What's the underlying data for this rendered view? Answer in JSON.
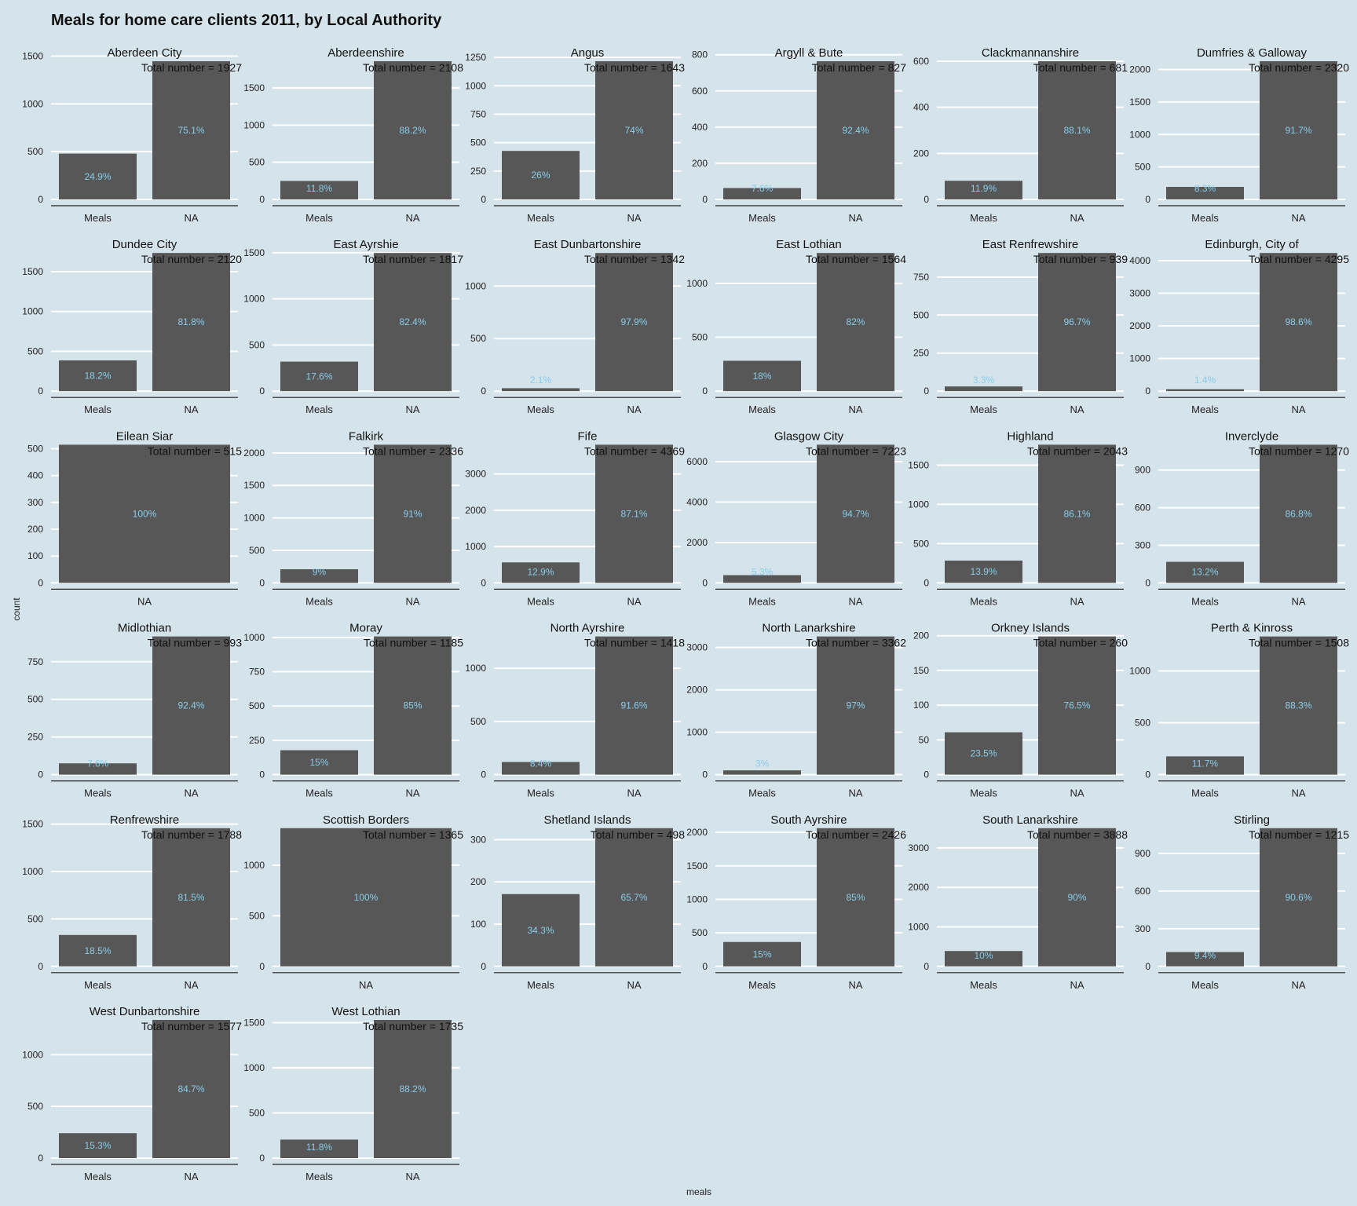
{
  "colors": {
    "background": "#d5e3ea",
    "bar": "#575757",
    "percent_label": "#87cdea",
    "gridline": "#ffffff",
    "axis_line": "#222222"
  },
  "chart_data": {
    "type": "bar",
    "title": "Meals for home care clients 2011, by Local Authority",
    "xlabel": "meals",
    "ylabel": "count",
    "total_prefix": "Total number = ",
    "grid": true,
    "panels": [
      {
        "name": "Aberdeen City",
        "total": 1927,
        "ticks": [
          0,
          500,
          1000,
          1500
        ],
        "bars": [
          {
            "category": "Meals",
            "value": 480,
            "pct": "24.9%"
          },
          {
            "category": "NA",
            "value": 1447,
            "pct": "75.1%"
          }
        ]
      },
      {
        "name": "Aberdeenshire",
        "total": 2108,
        "ticks": [
          0,
          500,
          1000,
          1500
        ],
        "bars": [
          {
            "category": "Meals",
            "value": 249,
            "pct": "11.8%"
          },
          {
            "category": "NA",
            "value": 1859,
            "pct": "88.2%"
          }
        ]
      },
      {
        "name": "Angus",
        "total": 1643,
        "ticks": [
          0,
          250,
          500,
          750,
          1000,
          1250
        ],
        "bars": [
          {
            "category": "Meals",
            "value": 427,
            "pct": "26%"
          },
          {
            "category": "NA",
            "value": 1216,
            "pct": "74%"
          }
        ]
      },
      {
        "name": "Argyll & Bute",
        "total": 827,
        "ticks": [
          0,
          200,
          400,
          600,
          800
        ],
        "bars": [
          {
            "category": "Meals",
            "value": 63,
            "pct": "7.6%"
          },
          {
            "category": "NA",
            "value": 764,
            "pct": "92.4%"
          }
        ]
      },
      {
        "name": "Clackmannanshire",
        "total": 681,
        "ticks": [
          0,
          200,
          400,
          600
        ],
        "bars": [
          {
            "category": "Meals",
            "value": 81,
            "pct": "11.9%"
          },
          {
            "category": "NA",
            "value": 600,
            "pct": "88.1%"
          }
        ]
      },
      {
        "name": "Dumfries & Galloway",
        "total": 2320,
        "ticks": [
          0,
          500,
          1000,
          1500,
          2000
        ],
        "bars": [
          {
            "category": "Meals",
            "value": 193,
            "pct": "8.3%"
          },
          {
            "category": "NA",
            "value": 2127,
            "pct": "91.7%"
          }
        ]
      },
      {
        "name": "Dundee City",
        "total": 2120,
        "ticks": [
          0,
          500,
          1000,
          1500
        ],
        "bars": [
          {
            "category": "Meals",
            "value": 386,
            "pct": "18.2%"
          },
          {
            "category": "NA",
            "value": 1734,
            "pct": "81.8%"
          }
        ]
      },
      {
        "name": "East Ayrshie",
        "total": 1817,
        "ticks": [
          0,
          500,
          1000,
          1500
        ],
        "bars": [
          {
            "category": "Meals",
            "value": 320,
            "pct": "17.6%"
          },
          {
            "category": "NA",
            "value": 1497,
            "pct": "82.4%"
          }
        ]
      },
      {
        "name": "East Dunbartonshire",
        "total": 1342,
        "ticks": [
          0,
          500,
          1000
        ],
        "bars": [
          {
            "category": "Meals",
            "value": 28,
            "pct": "2.1%"
          },
          {
            "category": "NA",
            "value": 1314,
            "pct": "97.9%"
          }
        ]
      },
      {
        "name": "East Lothian",
        "total": 1564,
        "ticks": [
          0,
          500,
          1000
        ],
        "bars": [
          {
            "category": "Meals",
            "value": 282,
            "pct": "18%"
          },
          {
            "category": "NA",
            "value": 1282,
            "pct": "82%"
          }
        ]
      },
      {
        "name": "East Renfrewshire",
        "total": 939,
        "ticks": [
          0,
          250,
          500,
          750
        ],
        "bars": [
          {
            "category": "Meals",
            "value": 31,
            "pct": "3.3%"
          },
          {
            "category": "NA",
            "value": 908,
            "pct": "96.7%"
          }
        ]
      },
      {
        "name": "Edinburgh, City of",
        "total": 4295,
        "ticks": [
          0,
          1000,
          2000,
          3000,
          4000
        ],
        "bars": [
          {
            "category": "Meals",
            "value": 60,
            "pct": "1.4%"
          },
          {
            "category": "NA",
            "value": 4235,
            "pct": "98.6%"
          }
        ]
      },
      {
        "name": "Eilean Siar",
        "total": 515,
        "ticks": [
          0,
          100,
          200,
          300,
          400,
          500
        ],
        "bars": [
          {
            "category": "NA",
            "value": 515,
            "pct": "100%"
          }
        ]
      },
      {
        "name": "Falkirk",
        "total": 2336,
        "ticks": [
          0,
          500,
          1000,
          1500,
          2000
        ],
        "bars": [
          {
            "category": "Meals",
            "value": 210,
            "pct": "9%"
          },
          {
            "category": "NA",
            "value": 2126,
            "pct": "91%"
          }
        ]
      },
      {
        "name": "Fife",
        "total": 4369,
        "ticks": [
          0,
          1000,
          2000,
          3000
        ],
        "bars": [
          {
            "category": "Meals",
            "value": 564,
            "pct": "12.9%"
          },
          {
            "category": "NA",
            "value": 3805,
            "pct": "87.1%"
          }
        ]
      },
      {
        "name": "Glasgow City",
        "total": 7223,
        "ticks": [
          0,
          2000,
          4000,
          6000
        ],
        "bars": [
          {
            "category": "Meals",
            "value": 383,
            "pct": "5.3%"
          },
          {
            "category": "NA",
            "value": 6840,
            "pct": "94.7%"
          }
        ]
      },
      {
        "name": "Highland",
        "total": 2043,
        "ticks": [
          0,
          500,
          1000,
          1500
        ],
        "bars": [
          {
            "category": "Meals",
            "value": 284,
            "pct": "13.9%"
          },
          {
            "category": "NA",
            "value": 1759,
            "pct": "86.1%"
          }
        ]
      },
      {
        "name": "Inverclyde",
        "total": 1270,
        "ticks": [
          0,
          300,
          600,
          900
        ],
        "bars": [
          {
            "category": "Meals",
            "value": 168,
            "pct": "13.2%"
          },
          {
            "category": "NA",
            "value": 1102,
            "pct": "86.8%"
          }
        ]
      },
      {
        "name": "Midlothian",
        "total": 993,
        "ticks": [
          0,
          250,
          500,
          750
        ],
        "bars": [
          {
            "category": "Meals",
            "value": 75,
            "pct": "7.6%"
          },
          {
            "category": "NA",
            "value": 918,
            "pct": "92.4%"
          }
        ]
      },
      {
        "name": "Moray",
        "total": 1185,
        "ticks": [
          0,
          250,
          500,
          750,
          1000
        ],
        "bars": [
          {
            "category": "Meals",
            "value": 178,
            "pct": "15%"
          },
          {
            "category": "NA",
            "value": 1007,
            "pct": "85%"
          }
        ]
      },
      {
        "name": "North Ayrshire",
        "total": 1418,
        "ticks": [
          0,
          500,
          1000
        ],
        "bars": [
          {
            "category": "Meals",
            "value": 119,
            "pct": "8.4%"
          },
          {
            "category": "NA",
            "value": 1299,
            "pct": "91.6%"
          }
        ]
      },
      {
        "name": "North Lanarkshire",
        "total": 3362,
        "ticks": [
          0,
          1000,
          2000,
          3000
        ],
        "bars": [
          {
            "category": "Meals",
            "value": 101,
            "pct": "3%"
          },
          {
            "category": "NA",
            "value": 3261,
            "pct": "97%"
          }
        ]
      },
      {
        "name": "Orkney Islands",
        "total": 260,
        "ticks": [
          0,
          50,
          100,
          150,
          200
        ],
        "bars": [
          {
            "category": "Meals",
            "value": 61,
            "pct": "23.5%"
          },
          {
            "category": "NA",
            "value": 199,
            "pct": "76.5%"
          }
        ]
      },
      {
        "name": "Perth & Kinross",
        "total": 1508,
        "ticks": [
          0,
          500,
          1000
        ],
        "bars": [
          {
            "category": "Meals",
            "value": 176,
            "pct": "11.7%"
          },
          {
            "category": "NA",
            "value": 1332,
            "pct": "88.3%"
          }
        ]
      },
      {
        "name": "Renfrewshire",
        "total": 1788,
        "ticks": [
          0,
          500,
          1000,
          1500
        ],
        "bars": [
          {
            "category": "Meals",
            "value": 331,
            "pct": "18.5%"
          },
          {
            "category": "NA",
            "value": 1457,
            "pct": "81.5%"
          }
        ]
      },
      {
        "name": "Scottish Borders",
        "total": 1365,
        "ticks": [
          0,
          500,
          1000
        ],
        "bars": [
          {
            "category": "NA",
            "value": 1365,
            "pct": "100%"
          }
        ]
      },
      {
        "name": "Shetland Islands",
        "total": 498,
        "ticks": [
          0,
          100,
          200,
          300
        ],
        "bars": [
          {
            "category": "Meals",
            "value": 171,
            "pct": "34.3%"
          },
          {
            "category": "NA",
            "value": 327,
            "pct": "65.7%"
          }
        ]
      },
      {
        "name": "South Ayrshire",
        "total": 2426,
        "ticks": [
          0,
          500,
          1000,
          1500,
          2000
        ],
        "bars": [
          {
            "category": "Meals",
            "value": 364,
            "pct": "15%"
          },
          {
            "category": "NA",
            "value": 2062,
            "pct": "85%"
          }
        ]
      },
      {
        "name": "South Lanarkshire",
        "total": 3888,
        "ticks": [
          0,
          1000,
          2000,
          3000
        ],
        "bars": [
          {
            "category": "Meals",
            "value": 389,
            "pct": "10%"
          },
          {
            "category": "NA",
            "value": 3499,
            "pct": "90%"
          }
        ]
      },
      {
        "name": "Stirling",
        "total": 1215,
        "ticks": [
          0,
          300,
          600,
          900
        ],
        "bars": [
          {
            "category": "Meals",
            "value": 114,
            "pct": "9.4%"
          },
          {
            "category": "NA",
            "value": 1101,
            "pct": "90.6%"
          }
        ]
      },
      {
        "name": "West Dunbartonshire",
        "total": 1577,
        "ticks": [
          0,
          500,
          1000
        ],
        "bars": [
          {
            "category": "Meals",
            "value": 241,
            "pct": "15.3%"
          },
          {
            "category": "NA",
            "value": 1336,
            "pct": "84.7%"
          }
        ]
      },
      {
        "name": "West Lothian",
        "total": 1735,
        "ticks": [
          0,
          500,
          1000,
          1500
        ],
        "bars": [
          {
            "category": "Meals",
            "value": 205,
            "pct": "11.8%"
          },
          {
            "category": "NA",
            "value": 1530,
            "pct": "88.2%"
          }
        ]
      }
    ]
  }
}
